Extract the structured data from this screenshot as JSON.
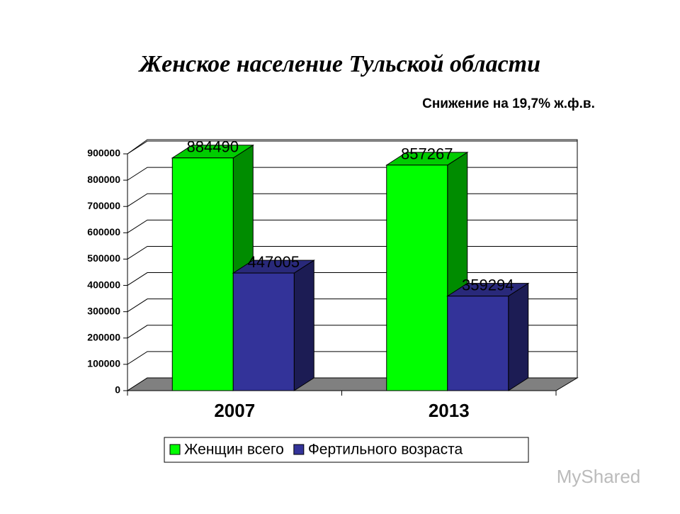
{
  "chart_data": {
    "type": "bar3d",
    "title": "Женское население Тульской области",
    "subtitle": "Снижение на 19,7% ж.ф.в.",
    "categories": [
      "2007",
      "2013"
    ],
    "series": [
      {
        "name": "Женщин всего",
        "color": "#00ff00",
        "values": [
          884490,
          857267
        ]
      },
      {
        "name": "Фертильного возраста",
        "color": "#333399",
        "values": [
          447005,
          359294
        ]
      }
    ],
    "ylim": [
      0,
      900000
    ],
    "yticks": [
      0,
      100000,
      200000,
      300000,
      400000,
      500000,
      600000,
      700000,
      800000,
      900000
    ],
    "grid": true,
    "legend": "bottom"
  },
  "watermark": "MyShared"
}
